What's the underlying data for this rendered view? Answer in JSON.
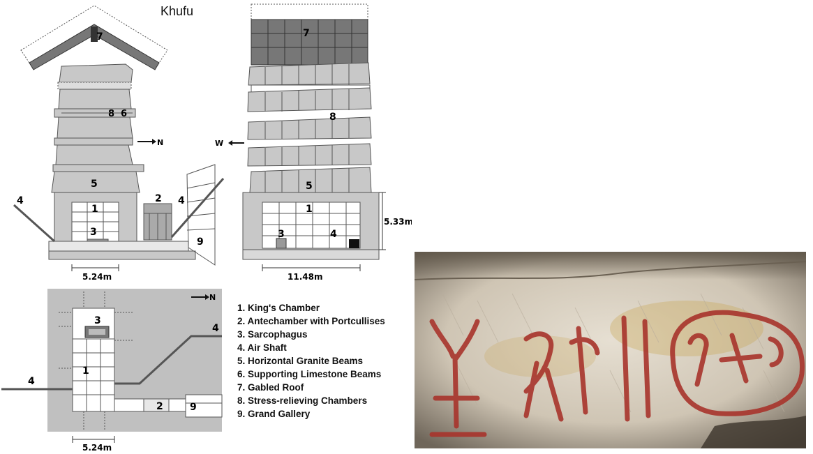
{
  "title": "Khufu",
  "side_view": {
    "markers": {
      "seven": "7",
      "eight": "8",
      "six": "6",
      "five": "5",
      "one": "1",
      "two": "2",
      "three": "3",
      "four_left": "4",
      "four_right": "4",
      "nine": "9"
    },
    "direction": "N",
    "width_label": "5.24m"
  },
  "front_view": {
    "markers": {
      "seven": "7",
      "eight": "8",
      "five": "5",
      "one": "1",
      "three": "3",
      "four": "4"
    },
    "direction": "W",
    "width_label": "11.48m",
    "height_label": "5.33m"
  },
  "plan_view": {
    "markers": {
      "three": "3",
      "one": "1",
      "two": "2",
      "four_left": "4",
      "four_right": "4",
      "nine": "9"
    },
    "direction": "N",
    "width_label": "5.24m"
  },
  "legend": [
    "1. King's Chamber",
    "2. Antechamber with Portcullises",
    "3. Sarcophagus",
    "4. Air Shaft",
    "5. Horizontal Granite Beams",
    "6. Supporting Limestone Beams",
    "7. Gabled Roof",
    "8. Stress-relieving Chambers",
    "9. Grand Gallery"
  ],
  "colors": {
    "granite": "#c8c8c8",
    "dark_granite": "#777777",
    "stone_fill": "#d9d9d9",
    "plan_bg": "#c0c0c0",
    "photo_stone": "#d8d0c2",
    "ochre_paint": "#a8342c"
  }
}
